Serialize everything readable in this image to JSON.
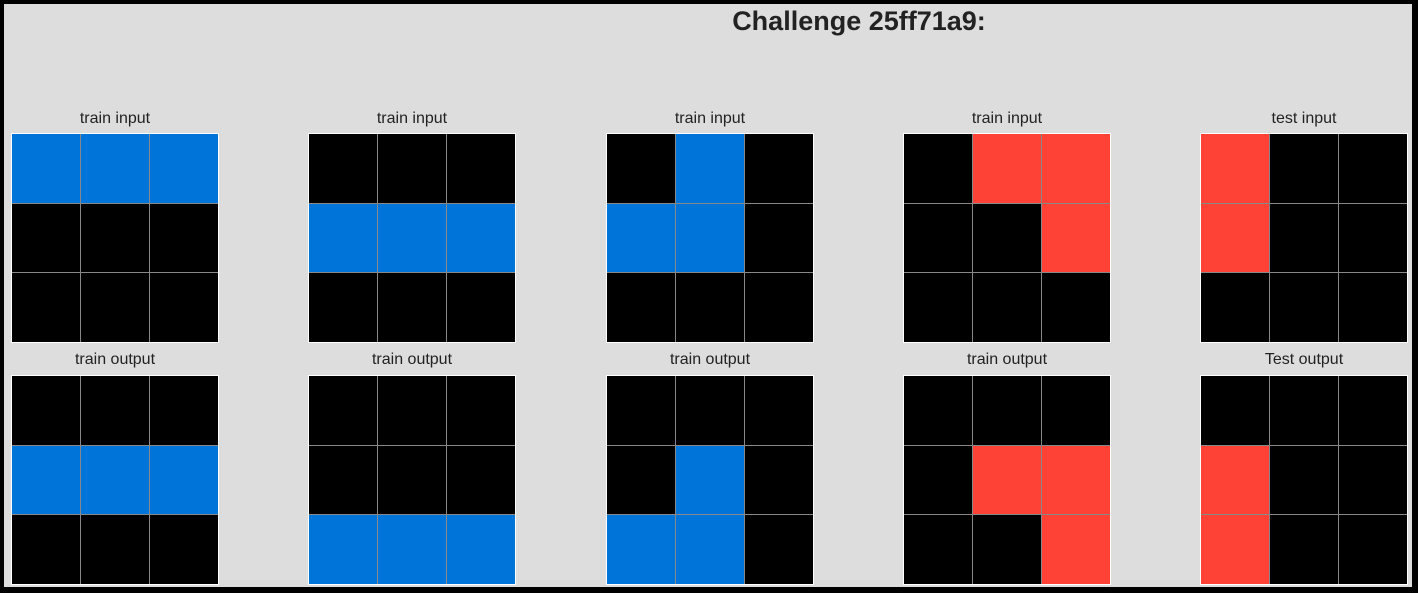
{
  "title": "Challenge 25ff71a9:",
  "palette": {
    "0": "#000000",
    "1": "#0074d9",
    "2": "#ff4136"
  },
  "panels": [
    {
      "label": "train input",
      "grid": [
        [
          1,
          1,
          1
        ],
        [
          0,
          0,
          0
        ],
        [
          0,
          0,
          0
        ]
      ]
    },
    {
      "label": "train input",
      "grid": [
        [
          0,
          0,
          0
        ],
        [
          1,
          1,
          1
        ],
        [
          0,
          0,
          0
        ]
      ]
    },
    {
      "label": "train input",
      "grid": [
        [
          0,
          1,
          0
        ],
        [
          1,
          1,
          0
        ],
        [
          0,
          0,
          0
        ]
      ]
    },
    {
      "label": "train input",
      "grid": [
        [
          0,
          2,
          2
        ],
        [
          0,
          0,
          2
        ],
        [
          0,
          0,
          0
        ]
      ]
    },
    {
      "label": "test input",
      "grid": [
        [
          2,
          0,
          0
        ],
        [
          2,
          0,
          0
        ],
        [
          0,
          0,
          0
        ]
      ]
    },
    {
      "label": "train output",
      "grid": [
        [
          0,
          0,
          0
        ],
        [
          1,
          1,
          1
        ],
        [
          0,
          0,
          0
        ]
      ]
    },
    {
      "label": "train output",
      "grid": [
        [
          0,
          0,
          0
        ],
        [
          0,
          0,
          0
        ],
        [
          1,
          1,
          1
        ]
      ]
    },
    {
      "label": "train output",
      "grid": [
        [
          0,
          0,
          0
        ],
        [
          0,
          1,
          0
        ],
        [
          1,
          1,
          0
        ]
      ]
    },
    {
      "label": "train output",
      "grid": [
        [
          0,
          0,
          0
        ],
        [
          0,
          2,
          2
        ],
        [
          0,
          0,
          2
        ]
      ]
    },
    {
      "label": "Test output",
      "grid": [
        [
          0,
          0,
          0
        ],
        [
          2,
          0,
          0
        ],
        [
          2,
          0,
          0
        ]
      ]
    }
  ]
}
